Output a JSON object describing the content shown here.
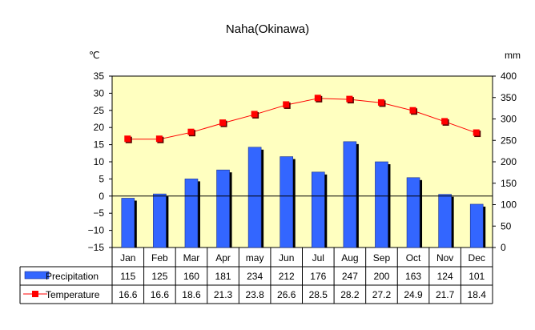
{
  "chart_data": {
    "type": "bar",
    "title": "Naha(Okinawa)",
    "y_left_unit": "℃",
    "y_right_unit": "mm",
    "categories": [
      "Jan",
      "Feb",
      "Mar",
      "Apr",
      "may",
      "Jun",
      "Jul",
      "Aug",
      "Sep",
      "Oct",
      "Nov",
      "Dec"
    ],
    "series": [
      {
        "name": "Precipitation",
        "type": "bar",
        "axis": "right",
        "values": [
          115,
          125,
          160,
          181,
          234,
          212,
          176,
          247,
          200,
          163,
          124,
          101
        ],
        "value_labels": [
          "115",
          "125",
          "160",
          "181",
          "234",
          "212",
          "176",
          "247",
          "200",
          "163",
          "124",
          "101"
        ]
      },
      {
        "name": "Temperature",
        "type": "line",
        "axis": "left",
        "values": [
          16.6,
          16.6,
          18.6,
          21.3,
          23.8,
          26.6,
          28.5,
          28.2,
          27.2,
          24.9,
          21.7,
          18.4
        ],
        "value_labels": [
          "16.6",
          "16.6",
          "18.6",
          "21.3",
          "23.8",
          "26.6",
          "28.5",
          "28.2",
          "27.2",
          "24.9",
          "21.7",
          "18.4"
        ]
      }
    ],
    "y_left": {
      "min": -15,
      "max": 35,
      "step": 5,
      "tick_labels": [
        "35",
        "30",
        "25",
        "20",
        "15",
        "10",
        "5",
        "0",
        "−5",
        "−10",
        "−15"
      ]
    },
    "y_right": {
      "min": 0,
      "max": 400,
      "step": 50,
      "tick_labels": [
        "400",
        "350",
        "300",
        "250",
        "200",
        "150",
        "100",
        "50",
        "0"
      ]
    },
    "plot_background": "#ffffc0",
    "colors": {
      "bar": "#3366ff",
      "bar_shadow": "#000000",
      "line": "#ff0000",
      "marker": "#ff0000",
      "zero_line": "#000000"
    },
    "grid": false,
    "legend": "data-table"
  }
}
